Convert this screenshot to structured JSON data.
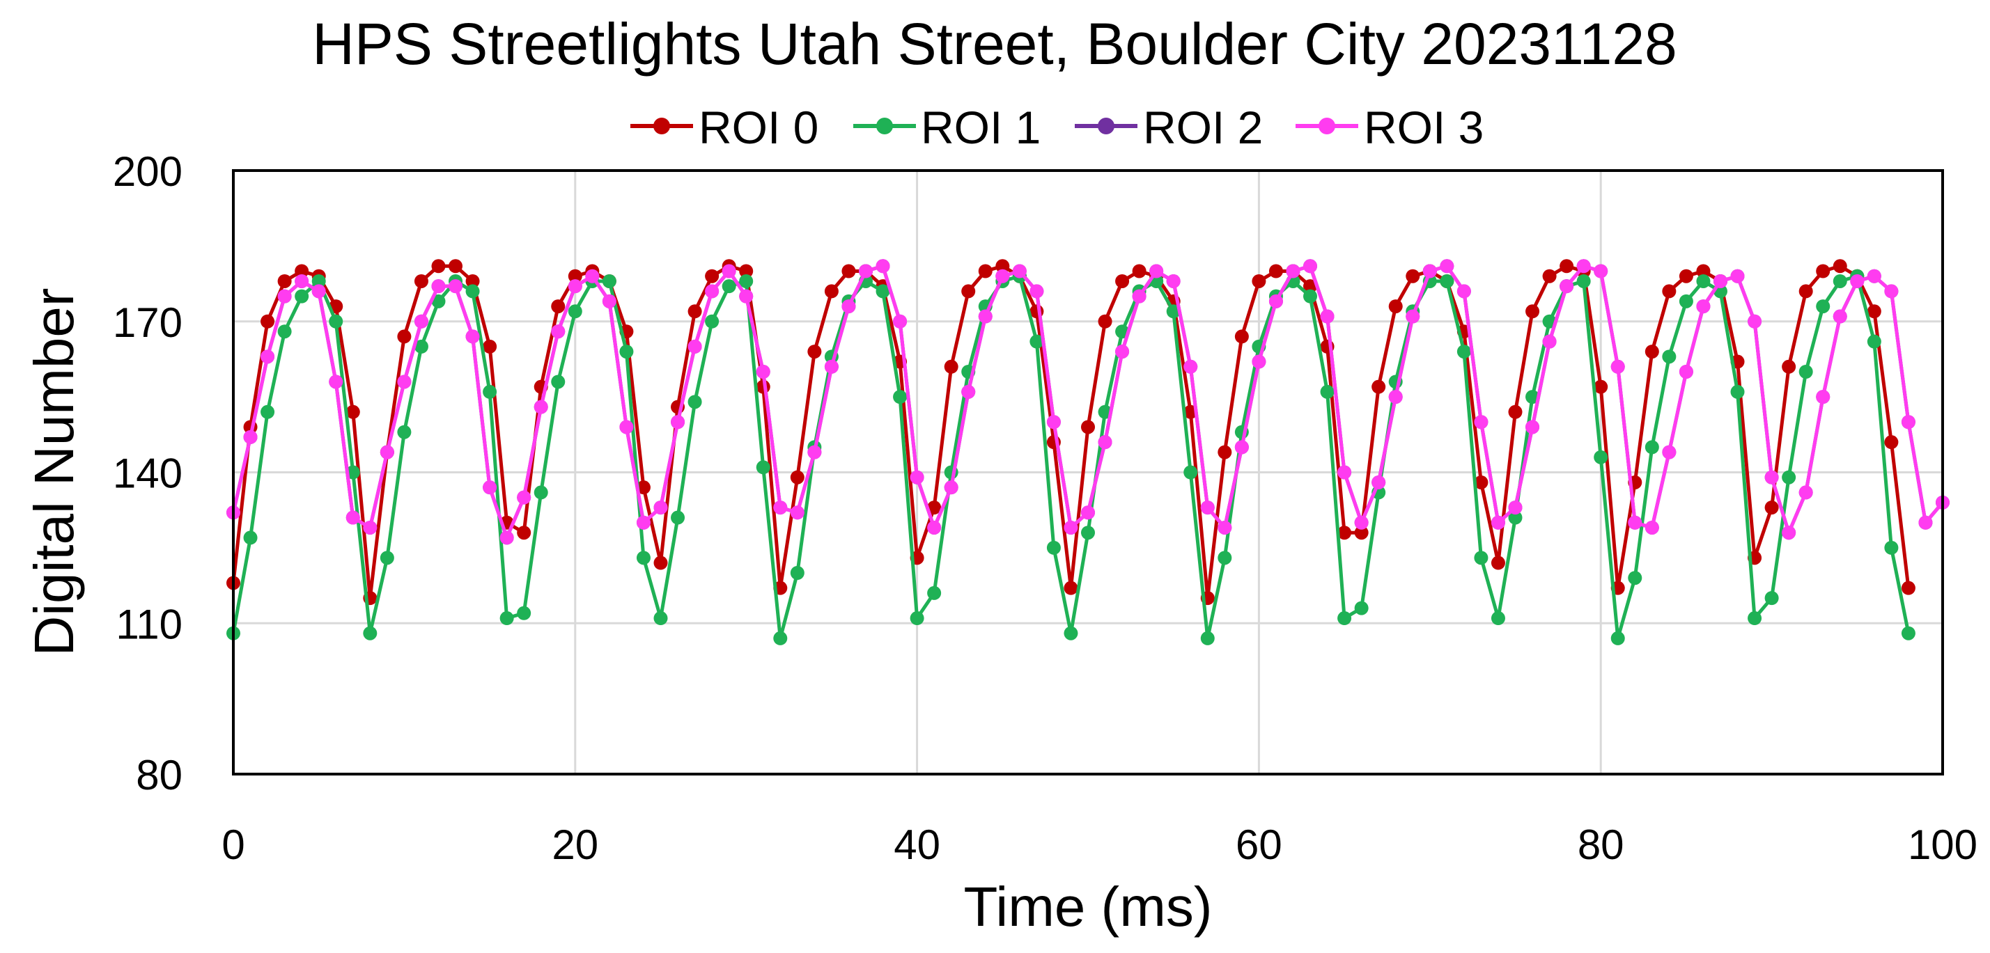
{
  "chart_data": {
    "type": "line",
    "title": "HPS Streetlights Utah Street, Boulder City 20231128",
    "xlabel": "Time (ms)",
    "ylabel": "Digital Number",
    "xlim": [
      0,
      100
    ],
    "ylim": [
      80,
      200
    ],
    "xticks": [
      0,
      20,
      40,
      60,
      80,
      100
    ],
    "yticks": [
      80,
      110,
      140,
      170,
      200
    ],
    "grid": true,
    "legend_position": "top",
    "series": [
      {
        "name": "ROI 0",
        "color": "#c00000",
        "values": [
          118,
          149,
          170,
          178,
          180,
          179,
          173,
          152,
          115,
          144,
          167,
          178,
          181,
          181,
          178,
          165,
          130,
          128,
          157,
          173,
          179,
          180,
          178,
          168,
          137,
          122,
          153,
          172,
          179,
          181,
          180,
          157,
          117,
          139,
          164,
          176,
          180,
          180,
          177,
          162,
          123,
          133,
          161,
          176,
          180,
          181,
          179,
          172,
          146,
          117,
          149,
          170,
          178,
          180,
          179,
          174,
          152,
          115,
          144,
          167,
          178,
          180,
          180,
          177,
          165,
          128,
          128,
          157,
          173,
          179,
          180,
          178,
          168,
          138,
          122,
          152,
          172,
          179,
          181,
          180,
          157,
          117,
          138,
          164,
          176,
          179,
          180,
          178,
          162,
          123,
          133,
          161,
          176,
          180,
          181,
          179,
          172,
          146,
          117
        ]
      },
      {
        "name": "ROI 1",
        "color": "#1fb155",
        "values": [
          108,
          127,
          152,
          168,
          175,
          178,
          170,
          140,
          108,
          123,
          148,
          165,
          174,
          178,
          176,
          156,
          111,
          112,
          136,
          158,
          172,
          178,
          178,
          164,
          123,
          111,
          131,
          154,
          170,
          177,
          178,
          141,
          107,
          120,
          145,
          163,
          174,
          178,
          176,
          155,
          111,
          116,
          140,
          160,
          173,
          178,
          179,
          166,
          125,
          108,
          128,
          152,
          168,
          176,
          178,
          172,
          140,
          107,
          123,
          148,
          165,
          175,
          178,
          175,
          156,
          111,
          113,
          136,
          158,
          172,
          178,
          178,
          164,
          123,
          111,
          131,
          155,
          170,
          177,
          178,
          143,
          107,
          119,
          145,
          163,
          174,
          178,
          176,
          156,
          111,
          115,
          139,
          160,
          173,
          178,
          179,
          166,
          125,
          108
        ]
      },
      {
        "name": "ROI 2",
        "color": "#7030a0",
        "values": [
          132,
          147,
          163,
          175,
          178,
          176,
          158,
          131,
          129,
          144,
          158,
          170,
          177,
          177,
          167,
          137,
          127,
          135,
          153,
          168,
          177,
          179,
          174,
          149,
          130,
          133,
          150,
          165,
          176,
          180,
          175,
          160,
          133,
          132,
          144,
          161,
          173,
          180,
          181,
          170,
          139,
          129,
          137,
          156,
          171,
          179,
          180,
          176,
          150,
          129,
          132,
          146,
          164,
          175,
          180,
          178,
          161,
          133,
          129,
          145,
          162,
          174,
          180,
          181,
          171,
          140,
          130,
          138,
          155,
          171,
          180,
          181,
          176,
          150,
          130,
          133,
          149,
          166,
          177,
          181,
          180,
          161,
          130,
          129,
          144,
          160,
          173,
          178,
          179,
          170,
          139,
          128,
          136,
          155,
          171,
          178,
          179,
          176,
          150,
          130,
          134
        ]
      },
      {
        "name": "ROI 3",
        "color": "#ff3cf0",
        "values": [
          132,
          147,
          163,
          175,
          178,
          176,
          158,
          131,
          129,
          144,
          158,
          170,
          177,
          177,
          167,
          137,
          127,
          135,
          153,
          168,
          177,
          179,
          174,
          149,
          130,
          133,
          150,
          165,
          176,
          180,
          175,
          160,
          133,
          132,
          144,
          161,
          173,
          180,
          181,
          170,
          139,
          129,
          137,
          156,
          171,
          179,
          180,
          176,
          150,
          129,
          132,
          146,
          164,
          175,
          180,
          178,
          161,
          133,
          129,
          145,
          162,
          174,
          180,
          181,
          171,
          140,
          130,
          138,
          155,
          171,
          180,
          181,
          176,
          150,
          130,
          133,
          149,
          166,
          177,
          181,
          180,
          161,
          130,
          129,
          144,
          160,
          173,
          178,
          179,
          170,
          139,
          128,
          136,
          155,
          171,
          178,
          179,
          176,
          150,
          130,
          134
        ]
      }
    ]
  }
}
